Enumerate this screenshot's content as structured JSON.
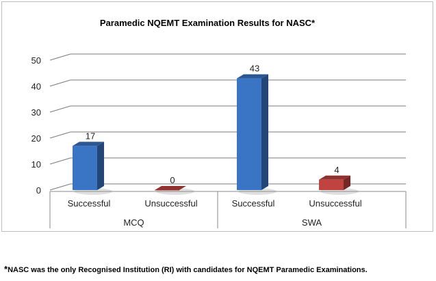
{
  "chart_data": {
    "type": "bar",
    "title": "Paramedic NQEMT Examination Results for NASC*",
    "groups": [
      {
        "name": "MCQ",
        "categories": [
          "Successful",
          "Unsuccessful"
        ],
        "values": [
          17,
          0
        ]
      },
      {
        "name": "SWA",
        "categories": [
          "Successful",
          "Unsuccessful"
        ],
        "values": [
          43,
          4
        ]
      }
    ],
    "ylim": [
      0,
      50
    ],
    "yticks": [
      0,
      10,
      20,
      30,
      40,
      50
    ],
    "grid": true,
    "colors": {
      "successful": "#3a74c4",
      "unsuccessful": "#c0433f"
    }
  },
  "footnote": {
    "marker": "*",
    "text": "NASC was the only Recognised Institution (RI) with candidates for NQEMT Paramedic Examinations."
  }
}
